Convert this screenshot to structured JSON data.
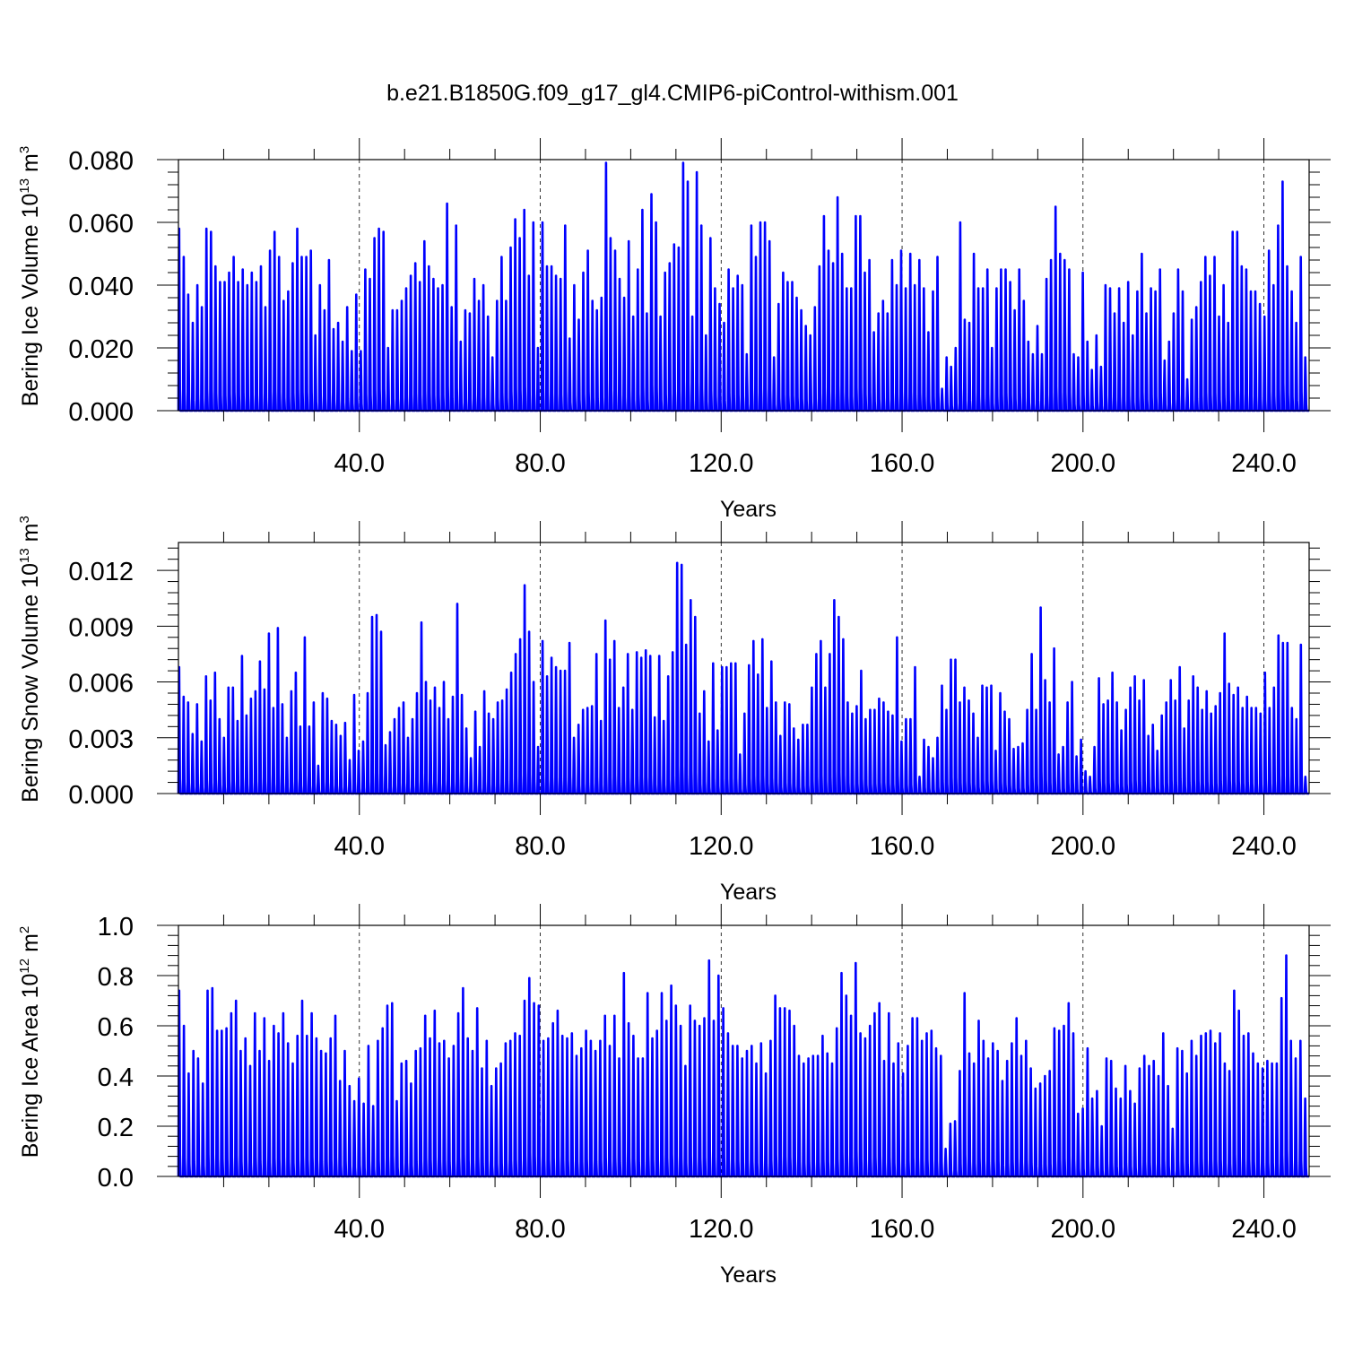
{
  "title": "b.e21.B1850G.f09_g17_gl4.CMIP6-piControl-withism.001",
  "colors": {
    "series": "#0000ff",
    "frame": "#000000",
    "grid": "#000000"
  },
  "chart_data": [
    {
      "type": "line",
      "name": "ice-volume",
      "xlabel": "Years",
      "ylabel_parts": {
        "text": "Bering Ice Volume 10",
        "exp": "13",
        "unit": " m",
        "unit_exp": "3"
      },
      "xlim": [
        0,
        250
      ],
      "ylim": [
        0,
        0.08
      ],
      "x_ticks": [
        40,
        80,
        120,
        160,
        200,
        240
      ],
      "x_tick_labels": [
        "40.0",
        "80.0",
        "120.0",
        "160.0",
        "200.0",
        "240.0"
      ],
      "y_ticks": [
        0,
        0.02,
        0.04,
        0.06,
        0.08
      ],
      "y_tick_labels": [
        "0.000",
        "0.020",
        "0.040",
        "0.060",
        "0.080"
      ],
      "grid_x": true,
      "annual_peaks": [
        0.058,
        0.049,
        0.037,
        0.028,
        0.04,
        0.033,
        0.058,
        0.057,
        0.046,
        0.041,
        0.041,
        0.044,
        0.049,
        0.041,
        0.045,
        0.04,
        0.044,
        0.041,
        0.046,
        0.033,
        0.051,
        0.057,
        0.049,
        0.035,
        0.038,
        0.047,
        0.058,
        0.049,
        0.049,
        0.051,
        0.024,
        0.04,
        0.032,
        0.048,
        0.026,
        0.028,
        0.022,
        0.033,
        0.019,
        0.037,
        0.019,
        0.045,
        0.042,
        0.055,
        0.058,
        0.057,
        0.02,
        0.032,
        0.032,
        0.035,
        0.039,
        0.043,
        0.047,
        0.041,
        0.054,
        0.046,
        0.042,
        0.039,
        0.04,
        0.066,
        0.033,
        0.059,
        0.022,
        0.032,
        0.031,
        0.042,
        0.035,
        0.04,
        0.03,
        0.017,
        0.035,
        0.049,
        0.035,
        0.052,
        0.061,
        0.055,
        0.064,
        0.043,
        0.06,
        0.02,
        0.06,
        0.046,
        0.046,
        0.043,
        0.042,
        0.059,
        0.023,
        0.04,
        0.029,
        0.044,
        0.051,
        0.035,
        0.032,
        0.036,
        0.079,
        0.055,
        0.051,
        0.042,
        0.036,
        0.054,
        0.03,
        0.045,
        0.064,
        0.031,
        0.069,
        0.06,
        0.03,
        0.044,
        0.047,
        0.053,
        0.052,
        0.079,
        0.073,
        0.03,
        0.076,
        0.059,
        0.024,
        0.055,
        0.039,
        0.034,
        0.028,
        0.045,
        0.039,
        0.043,
        0.04,
        0.018,
        0.059,
        0.049,
        0.06,
        0.06,
        0.054,
        0.017,
        0.034,
        0.044,
        0.041,
        0.041,
        0.036,
        0.032,
        0.027,
        0.024,
        0.033,
        0.046,
        0.062,
        0.051,
        0.047,
        0.068,
        0.05,
        0.039,
        0.039,
        0.062,
        0.062,
        0.044,
        0.048,
        0.025,
        0.031,
        0.035,
        0.031,
        0.048,
        0.04,
        0.051,
        0.039,
        0.05,
        0.04,
        0.048,
        0.039,
        0.025,
        0.038,
        0.049,
        0.007,
        0.017,
        0.014,
        0.02,
        0.06,
        0.029,
        0.028,
        0.05,
        0.039,
        0.039,
        0.045,
        0.02,
        0.039,
        0.045,
        0.045,
        0.041,
        0.032,
        0.045,
        0.035,
        0.022,
        0.018,
        0.027,
        0.018,
        0.042,
        0.048,
        0.065,
        0.05,
        0.048,
        0.045,
        0.018,
        0.017,
        0.044,
        0.022,
        0.013,
        0.024,
        0.014,
        0.04,
        0.039,
        0.031,
        0.039,
        0.028,
        0.041,
        0.024,
        0.038,
        0.05,
        0.031,
        0.039,
        0.038,
        0.045,
        0.016,
        0.022,
        0.031,
        0.045,
        0.038,
        0.01,
        0.029,
        0.033,
        0.041,
        0.049,
        0.043,
        0.049,
        0.03,
        0.04,
        0.028,
        0.057,
        0.057,
        0.046,
        0.045,
        0.038,
        0.038,
        0.034,
        0.03,
        0.051,
        0.04,
        0.059,
        0.073,
        0.046,
        0.038,
        0.028,
        0.049,
        0.017
      ]
    },
    {
      "type": "line",
      "name": "snow-volume",
      "xlabel": "Years",
      "ylabel_parts": {
        "text": "Bering Snow Volume 10",
        "exp": "13",
        "unit": " m",
        "unit_exp": "3"
      },
      "xlim": [
        0,
        250
      ],
      "ylim": [
        0,
        0.0135
      ],
      "x_ticks": [
        40,
        80,
        120,
        160,
        200,
        240
      ],
      "x_tick_labels": [
        "40.0",
        "80.0",
        "120.0",
        "160.0",
        "200.0",
        "240.0"
      ],
      "y_ticks": [
        0,
        0.003,
        0.006,
        0.009,
        0.012
      ],
      "y_tick_labels": [
        "0.000",
        "0.003",
        "0.006",
        "0.009",
        "0.012"
      ],
      "grid_x": true,
      "annual_peaks": [
        0.0068,
        0.0052,
        0.0049,
        0.0032,
        0.0048,
        0.0028,
        0.0063,
        0.005,
        0.0065,
        0.004,
        0.003,
        0.0057,
        0.0057,
        0.0039,
        0.0074,
        0.0042,
        0.0051,
        0.0055,
        0.0071,
        0.0056,
        0.0086,
        0.0046,
        0.0089,
        0.0048,
        0.003,
        0.0055,
        0.0065,
        0.0036,
        0.0084,
        0.0036,
        0.0049,
        0.0015,
        0.0054,
        0.0051,
        0.0039,
        0.0037,
        0.0031,
        0.0038,
        0.0018,
        0.0053,
        0.0023,
        0.0028,
        0.0054,
        0.0095,
        0.0096,
        0.0087,
        0.0026,
        0.0033,
        0.004,
        0.0046,
        0.0049,
        0.003,
        0.004,
        0.0054,
        0.0092,
        0.006,
        0.005,
        0.0057,
        0.0046,
        0.006,
        0.004,
        0.0052,
        0.0102,
        0.0053,
        0.0035,
        0.0019,
        0.0044,
        0.0025,
        0.0055,
        0.0043,
        0.004,
        0.0049,
        0.005,
        0.0056,
        0.0065,
        0.0075,
        0.0083,
        0.0112,
        0.0087,
        0.006,
        0.0025,
        0.0082,
        0.0063,
        0.0073,
        0.0068,
        0.0066,
        0.0066,
        0.0081,
        0.003,
        0.0037,
        0.0045,
        0.0046,
        0.0047,
        0.0075,
        0.0039,
        0.0093,
        0.0072,
        0.0082,
        0.0046,
        0.0057,
        0.0075,
        0.0045,
        0.0076,
        0.0073,
        0.0077,
        0.0074,
        0.0041,
        0.0074,
        0.0039,
        0.0063,
        0.0076,
        0.0124,
        0.0123,
        0.008,
        0.0104,
        0.0095,
        0.0043,
        0.0055,
        0.0028,
        0.007,
        0.0034,
        0.0068,
        0.0068,
        0.007,
        0.007,
        0.0021,
        0.0043,
        0.0069,
        0.0082,
        0.0064,
        0.0083,
        0.0046,
        0.0071,
        0.0049,
        0.0031,
        0.0049,
        0.0048,
        0.0035,
        0.0029,
        0.0037,
        0.0037,
        0.0057,
        0.0075,
        0.0082,
        0.0057,
        0.0075,
        0.0104,
        0.0095,
        0.0083,
        0.0049,
        0.0043,
        0.0047,
        0.0066,
        0.004,
        0.0045,
        0.0045,
        0.0051,
        0.0049,
        0.0044,
        0.0042,
        0.0084,
        0.0028,
        0.004,
        0.004,
        0.0068,
        0.0009,
        0.0029,
        0.0025,
        0.0019,
        0.003,
        0.0058,
        0.0045,
        0.0072,
        0.0072,
        0.0049,
        0.0057,
        0.005,
        0.0043,
        0.003,
        0.0058,
        0.0057,
        0.0058,
        0.0023,
        0.0054,
        0.0044,
        0.004,
        0.0024,
        0.0025,
        0.0027,
        0.0045,
        0.0075,
        0.0045,
        0.01,
        0.0061,
        0.0049,
        0.0078,
        0.0021,
        0.0025,
        0.0049,
        0.006,
        0.002,
        0.0029,
        0.0012,
        0.0009,
        0.0025,
        0.0062,
        0.0048,
        0.005,
        0.0065,
        0.0049,
        0.0034,
        0.0045,
        0.0057,
        0.0063,
        0.005,
        0.0061,
        0.0031,
        0.0037,
        0.0023,
        0.0042,
        0.0049,
        0.0061,
        0.005,
        0.0068,
        0.0035,
        0.005,
        0.0063,
        0.0057,
        0.0045,
        0.0055,
        0.0043,
        0.0047,
        0.0054,
        0.0086,
        0.0059,
        0.0053,
        0.0057,
        0.0046,
        0.0052,
        0.0046,
        0.0046,
        0.0043,
        0.0065,
        0.0046,
        0.0057,
        0.0085,
        0.0081,
        0.0081,
        0.0046,
        0.004,
        0.008,
        0.0009
      ]
    },
    {
      "type": "line",
      "name": "ice-area",
      "xlabel": "Years",
      "ylabel_parts": {
        "text": "Bering Ice Area 10",
        "exp": "12",
        "unit": " m",
        "unit_exp": "2"
      },
      "xlim": [
        0,
        250
      ],
      "ylim": [
        0,
        1.0
      ],
      "x_ticks": [
        40,
        80,
        120,
        160,
        200,
        240
      ],
      "x_tick_labels": [
        "40.0",
        "80.0",
        "120.0",
        "160.0",
        "200.0",
        "240.0"
      ],
      "y_ticks": [
        0,
        0.2,
        0.4,
        0.6,
        0.8,
        1.0
      ],
      "y_tick_labels": [
        "0.0",
        "0.2",
        "0.4",
        "0.6",
        "0.8",
        "1.0"
      ],
      "grid_x": true,
      "annual_peaks": [
        0.74,
        0.6,
        0.41,
        0.5,
        0.47,
        0.37,
        0.74,
        0.75,
        0.58,
        0.58,
        0.59,
        0.65,
        0.7,
        0.5,
        0.55,
        0.44,
        0.65,
        0.5,
        0.63,
        0.46,
        0.6,
        0.57,
        0.65,
        0.53,
        0.45,
        0.56,
        0.7,
        0.56,
        0.65,
        0.55,
        0.5,
        0.49,
        0.55,
        0.64,
        0.38,
        0.5,
        0.36,
        0.3,
        0.39,
        0.29,
        0.52,
        0.28,
        0.54,
        0.59,
        0.68,
        0.69,
        0.3,
        0.45,
        0.46,
        0.37,
        0.5,
        0.51,
        0.64,
        0.55,
        0.66,
        0.53,
        0.54,
        0.47,
        0.52,
        0.65,
        0.75,
        0.55,
        0.5,
        0.67,
        0.43,
        0.54,
        0.36,
        0.43,
        0.45,
        0.53,
        0.54,
        0.57,
        0.56,
        0.7,
        0.79,
        0.69,
        0.68,
        0.54,
        0.55,
        0.61,
        0.66,
        0.56,
        0.55,
        0.57,
        0.48,
        0.51,
        0.58,
        0.54,
        0.5,
        0.54,
        0.64,
        0.52,
        0.64,
        0.47,
        0.81,
        0.61,
        0.56,
        0.47,
        0.47,
        0.73,
        0.55,
        0.58,
        0.73,
        0.62,
        0.76,
        0.68,
        0.6,
        0.44,
        0.68,
        0.62,
        0.6,
        0.63,
        0.86,
        0.62,
        0.8,
        0.67,
        0.57,
        0.52,
        0.52,
        0.47,
        0.5,
        0.52,
        0.45,
        0.53,
        0.41,
        0.54,
        0.72,
        0.67,
        0.67,
        0.66,
        0.6,
        0.48,
        0.45,
        0.47,
        0.48,
        0.48,
        0.56,
        0.49,
        0.45,
        0.59,
        0.81,
        0.72,
        0.64,
        0.85,
        0.57,
        0.55,
        0.6,
        0.65,
        0.69,
        0.46,
        0.65,
        0.45,
        0.53,
        0.41,
        0.52,
        0.63,
        0.63,
        0.54,
        0.57,
        0.58,
        0.51,
        0.48,
        0.11,
        0.21,
        0.22,
        0.42,
        0.73,
        0.49,
        0.45,
        0.62,
        0.54,
        0.47,
        0.53,
        0.5,
        0.38,
        0.46,
        0.53,
        0.63,
        0.48,
        0.54,
        0.43,
        0.35,
        0.37,
        0.4,
        0.42,
        0.59,
        0.58,
        0.6,
        0.69,
        0.57,
        0.25,
        0.27,
        0.51,
        0.31,
        0.34,
        0.2,
        0.47,
        0.46,
        0.35,
        0.31,
        0.44,
        0.34,
        0.29,
        0.43,
        0.48,
        0.44,
        0.46,
        0.4,
        0.57,
        0.36,
        0.19,
        0.51,
        0.5,
        0.41,
        0.54,
        0.48,
        0.56,
        0.57,
        0.58,
        0.53,
        0.57,
        0.45,
        0.42,
        0.74,
        0.66,
        0.56,
        0.57,
        0.49,
        0.45,
        0.43,
        0.46,
        0.45,
        0.45,
        0.71,
        0.88,
        0.54,
        0.47,
        0.54,
        0.31
      ]
    }
  ]
}
